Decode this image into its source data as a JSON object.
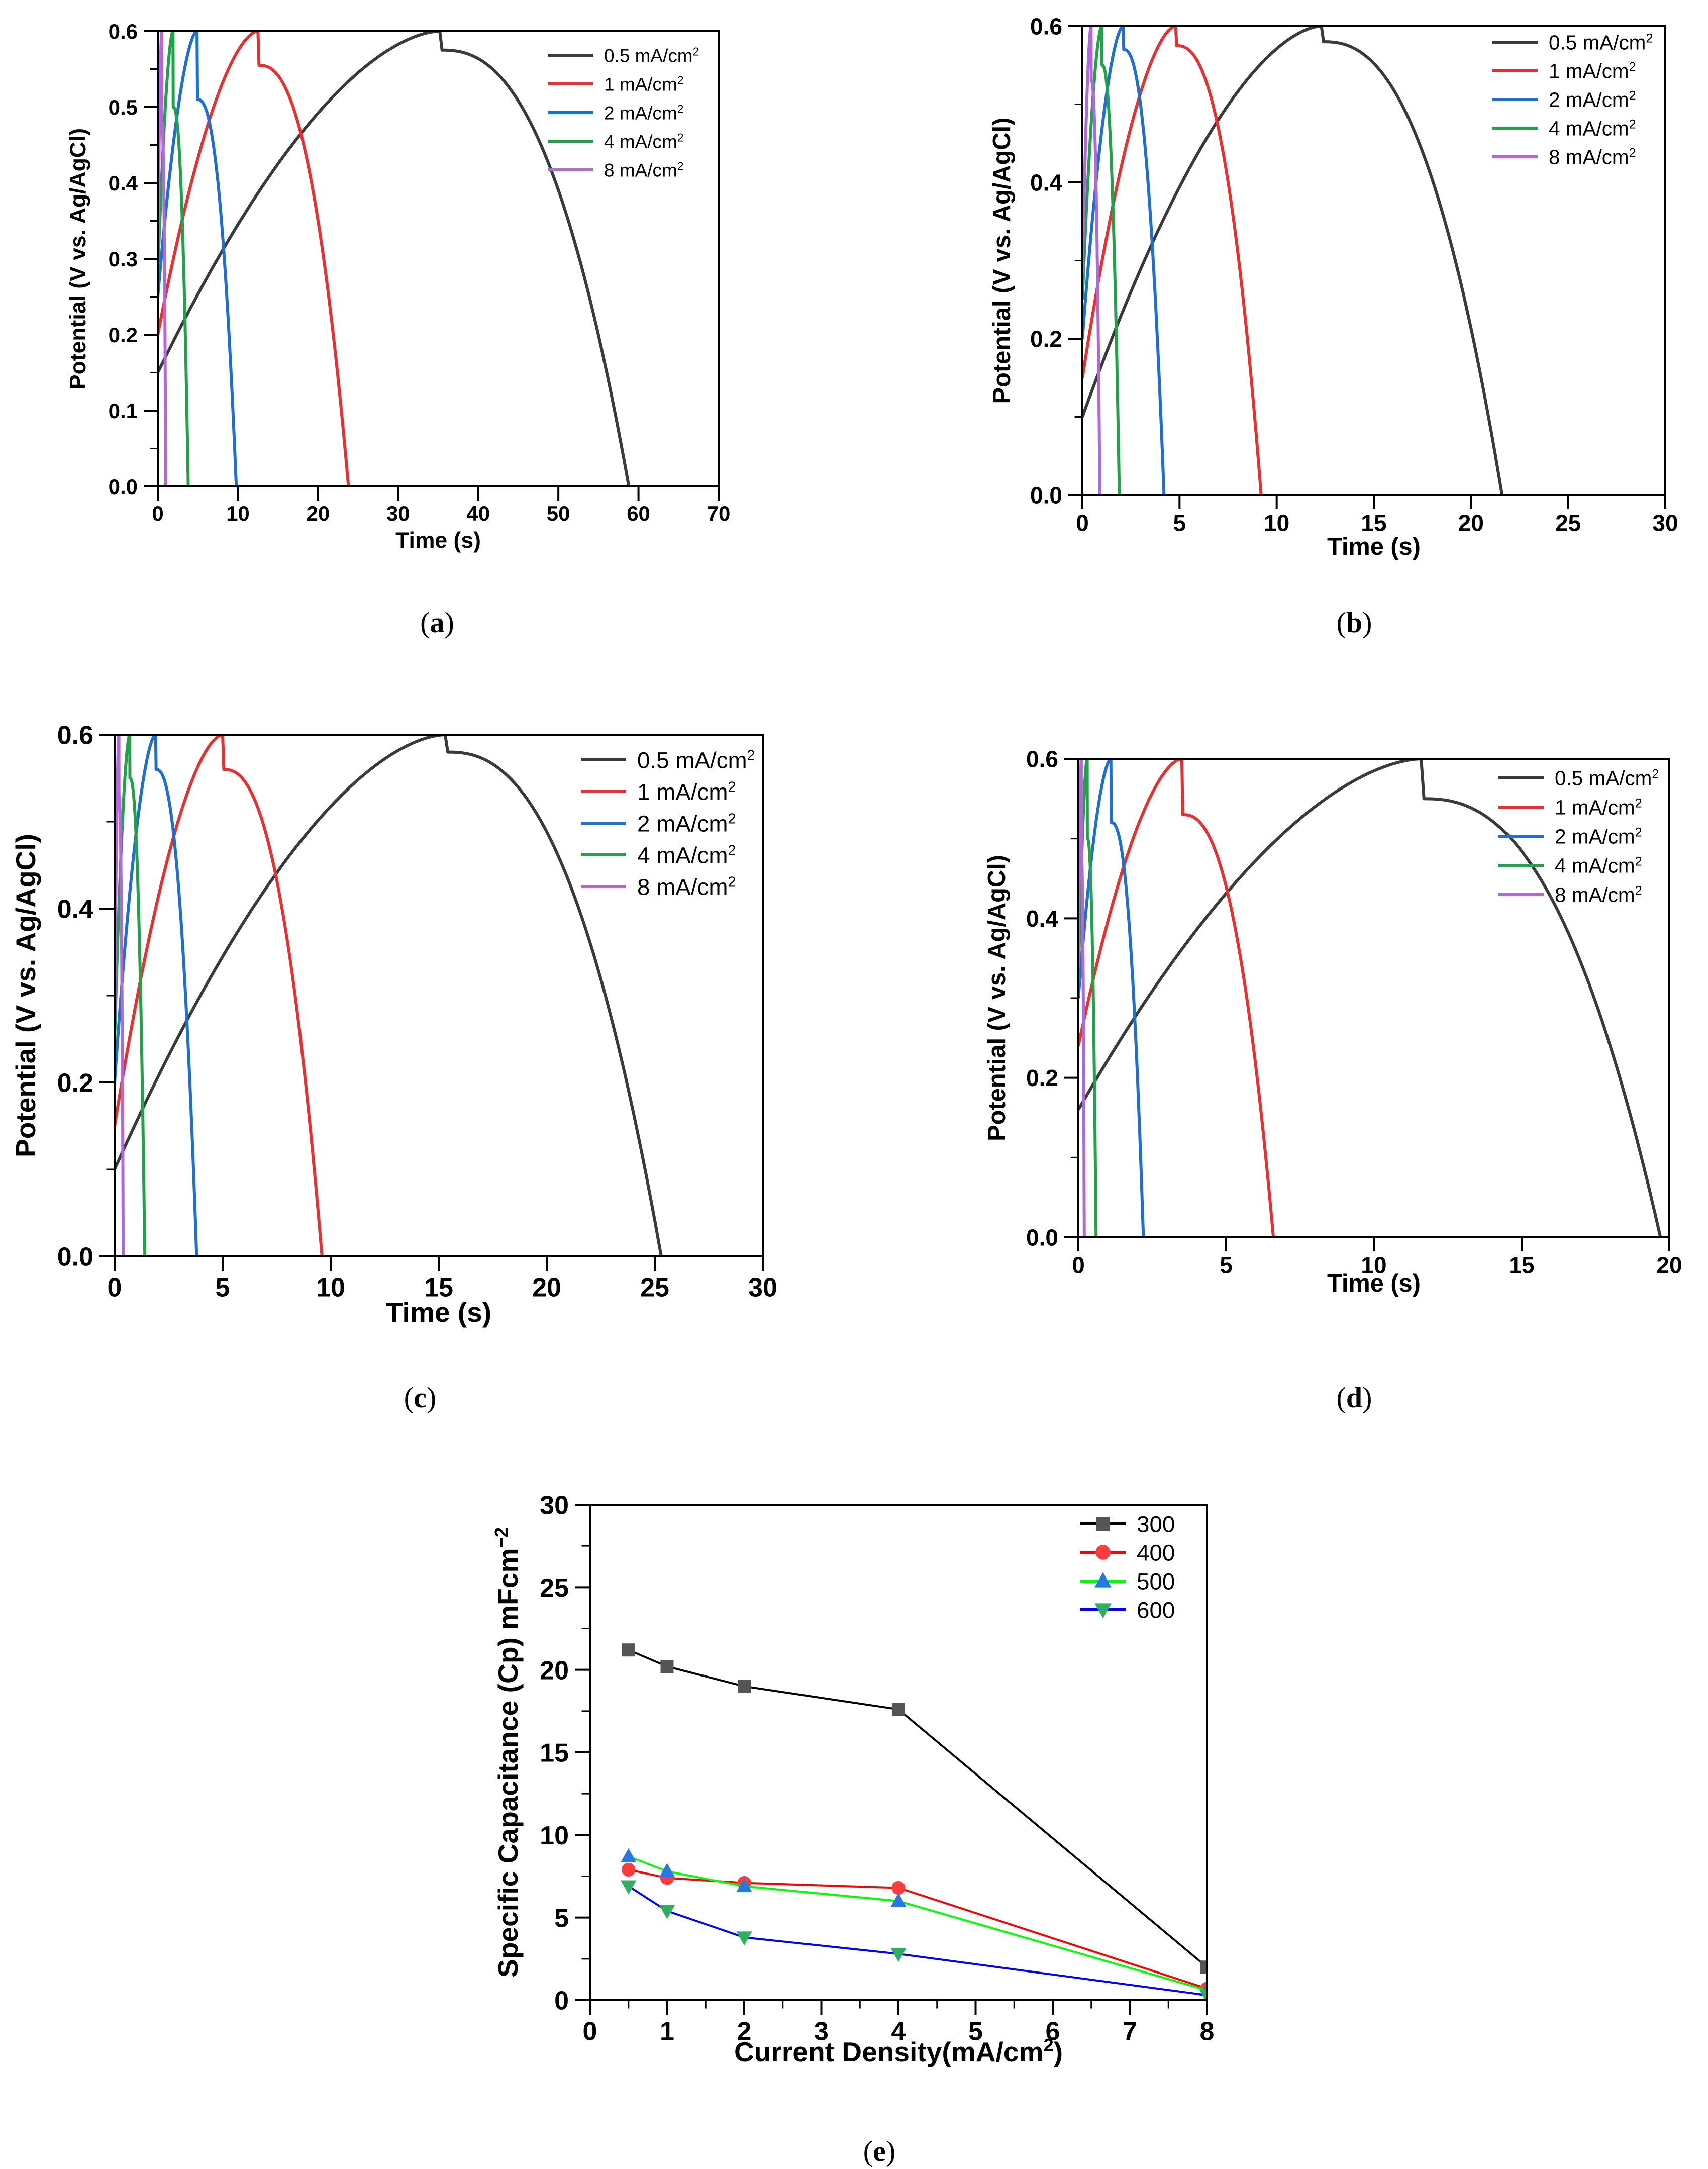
{
  "figure": {
    "panels": [
      "(a)",
      "(b)",
      "(c)",
      "(d)",
      "(e)"
    ]
  },
  "chart_data": [
    {
      "panel": "(a)",
      "type": "line",
      "xlabel": "Time (s)",
      "ylabel": "Potential (V vs. Ag/AgCl)",
      "xlim": [
        0,
        70
      ],
      "ylim": [
        0.0,
        0.6
      ],
      "xticks": [
        "0",
        "10",
        "20",
        "30",
        "40",
        "50",
        "60",
        "70"
      ],
      "yticks": [
        "0.0",
        "0.1",
        "0.2",
        "0.3",
        "0.4",
        "0.5",
        "0.6"
      ],
      "legend": "top-right",
      "series": [
        {
          "name": "0.5 mA/cm2",
          "legend_base": "0.5 mA/cm",
          "color": "#3a3a3a",
          "charge_end": 35.2,
          "discharge_end": 58.8,
          "start_v": 0.15,
          "drop_v": 0.575
        },
        {
          "name": "1 mA/cm2",
          "legend_base": "1 mA/cm",
          "color": "#e8312f",
          "charge_end": 12.5,
          "discharge_end": 23.8,
          "start_v": 0.2,
          "drop_v": 0.555
        },
        {
          "name": "2 mA/cm2",
          "legend_base": "2 mA/cm",
          "color": "#1f6fd1",
          "charge_end": 4.9,
          "discharge_end": 9.8,
          "start_v": 0.25,
          "drop_v": 0.51
        },
        {
          "name": "4 mA/cm2",
          "legend_base": "4 mA/cm",
          "color": "#22a14a",
          "charge_end": 1.9,
          "discharge_end": 3.8,
          "start_v": 0.28,
          "drop_v": 0.5
        },
        {
          "name": "8 mA/cm2",
          "legend_base": "8 mA/cm",
          "color": "#b06ad8",
          "charge_end": 0.5,
          "discharge_end": 1.0,
          "start_v": 0.3,
          "drop_v": 0.48
        }
      ]
    },
    {
      "panel": "(b)",
      "type": "line",
      "xlabel": "Time (s)",
      "ylabel": "Potential (V vs. Ag/AgCl)",
      "xlim": [
        0,
        30
      ],
      "ylim": [
        0.0,
        0.6
      ],
      "xticks": [
        "0",
        "5",
        "10",
        "15",
        "20",
        "25",
        "30"
      ],
      "yticks": [
        "0.0",
        "0.2",
        "0.4",
        "0.6"
      ],
      "legend": "top-right",
      "series": [
        {
          "name": "0.5 mA/cm2",
          "legend_base": "0.5 mA/cm",
          "color": "#3a3a3a",
          "charge_end": 12.3,
          "discharge_end": 21.6,
          "start_v": 0.1,
          "drop_v": 0.58
        },
        {
          "name": "1 mA/cm2",
          "legend_base": "1 mA/cm",
          "color": "#e8312f",
          "charge_end": 4.8,
          "discharge_end": 9.2,
          "start_v": 0.15,
          "drop_v": 0.575
        },
        {
          "name": "2 mA/cm2",
          "legend_base": "2 mA/cm",
          "color": "#1f6fd1",
          "charge_end": 2.1,
          "discharge_end": 4.2,
          "start_v": 0.2,
          "drop_v": 0.57
        },
        {
          "name": "4 mA/cm2",
          "legend_base": "4 mA/cm",
          "color": "#22a14a",
          "charge_end": 1.0,
          "discharge_end": 1.9,
          "start_v": 0.25,
          "drop_v": 0.55
        },
        {
          "name": "8 mA/cm2",
          "legend_base": "8 mA/cm",
          "color": "#b06ad8",
          "charge_end": 0.45,
          "discharge_end": 0.9,
          "start_v": 0.28,
          "drop_v": 0.53
        }
      ]
    },
    {
      "panel": "(c)",
      "type": "line",
      "xlabel": "Time (s)",
      "ylabel": "Potential (V vs. Ag/AgCl)",
      "xlim": [
        0,
        30
      ],
      "ylim": [
        0.0,
        0.6
      ],
      "xticks": [
        "0",
        "5",
        "10",
        "15",
        "20",
        "25",
        "30"
      ],
      "yticks": [
        "0.0",
        "0.2",
        "0.4",
        "0.6"
      ],
      "legend": "top-right",
      "series": [
        {
          "name": "0.5 mA/cm2",
          "legend_base": "0.5 mA/cm",
          "color": "#3a3a3a",
          "charge_end": 15.3,
          "discharge_end": 25.3,
          "start_v": 0.1,
          "drop_v": 0.58
        },
        {
          "name": "1 mA/cm2",
          "legend_base": "1 mA/cm",
          "color": "#e8312f",
          "charge_end": 5.0,
          "discharge_end": 9.6,
          "start_v": 0.15,
          "drop_v": 0.56
        },
        {
          "name": "2 mA/cm2",
          "legend_base": "2 mA/cm",
          "color": "#1f6fd1",
          "charge_end": 1.9,
          "discharge_end": 3.8,
          "start_v": 0.2,
          "drop_v": 0.56
        },
        {
          "name": "4 mA/cm2",
          "legend_base": "4 mA/cm",
          "color": "#22a14a",
          "charge_end": 0.7,
          "discharge_end": 1.4,
          "start_v": 0.25,
          "drop_v": 0.55
        },
        {
          "name": "8 mA/cm2",
          "legend_base": "8 mA/cm",
          "color": "#b06ad8",
          "charge_end": 0.2,
          "discharge_end": 0.4,
          "start_v": 0.28,
          "drop_v": 0.53
        }
      ]
    },
    {
      "panel": "(d)",
      "type": "line",
      "xlabel": "Time (s)",
      "ylabel": "Potential (V vs. Ag/AgCl)",
      "xlim": [
        0,
        20
      ],
      "ylim": [
        0.0,
        0.6
      ],
      "xticks": [
        "0",
        "5",
        "10",
        "15",
        "20"
      ],
      "yticks": [
        "0.0",
        "0.2",
        "0.4",
        "0.6"
      ],
      "legend": "top-right",
      "series": [
        {
          "name": "0.5 mA/cm2",
          "legend_base": "0.5 mA/cm",
          "color": "#3a3a3a",
          "charge_end": 11.6,
          "discharge_end": 19.7,
          "start_v": 0.16,
          "drop_v": 0.55
        },
        {
          "name": "1 mA/cm2",
          "legend_base": "1 mA/cm",
          "color": "#e8312f",
          "charge_end": 3.5,
          "discharge_end": 6.6,
          "start_v": 0.24,
          "drop_v": 0.53
        },
        {
          "name": "2 mA/cm2",
          "legend_base": "2 mA/cm",
          "color": "#1f6fd1",
          "charge_end": 1.1,
          "discharge_end": 2.2,
          "start_v": 0.3,
          "drop_v": 0.52
        },
        {
          "name": "4 mA/cm2",
          "legend_base": "4 mA/cm",
          "color": "#22a14a",
          "charge_end": 0.3,
          "discharge_end": 0.6,
          "start_v": 0.32,
          "drop_v": 0.5
        },
        {
          "name": "8 mA/cm2",
          "legend_base": "8 mA/cm",
          "color": "#b06ad8",
          "charge_end": 0.1,
          "discharge_end": 0.2,
          "start_v": 0.34,
          "drop_v": 0.48
        }
      ]
    },
    {
      "panel": "(e)",
      "type": "line",
      "xlabel": "Current Density(mA/cm2)",
      "xlabel_base": "Current Density(mA/cm",
      "xlabel_tail": ")",
      "ylabel": "Specific Capacitance (Cp) mFcm−2",
      "ylabel_base": "Specific Capacitance (Cp) mFcm",
      "xlim": [
        0,
        8
      ],
      "ylim": [
        0,
        30
      ],
      "xticks": [
        "0",
        "1",
        "2",
        "3",
        "4",
        "5",
        "6",
        "7",
        "8"
      ],
      "yticks": [
        "0",
        "5",
        "10",
        "15",
        "20",
        "25",
        "30"
      ],
      "legend": "top-right",
      "x": [
        0.5,
        1,
        2,
        4,
        8
      ],
      "series": [
        {
          "name": "300",
          "color": "#000000",
          "marker_color": "#555555",
          "marker": "square",
          "values": [
            21.2,
            20.2,
            19.0,
            17.6,
            2.0
          ]
        },
        {
          "name": "400",
          "color": "#ff0000",
          "marker_color": "#ff3b3b",
          "marker": "circle",
          "values": [
            7.9,
            7.4,
            7.1,
            6.8,
            0.7
          ]
        },
        {
          "name": "500",
          "color": "#00ff00",
          "marker_color": "#2677e8",
          "marker": "triangle-up",
          "values": [
            8.7,
            7.8,
            6.9,
            6.0,
            0.6
          ]
        },
        {
          "name": "600",
          "color": "#0000ff",
          "marker_color": "#2fae62",
          "marker": "triangle-down",
          "values": [
            6.9,
            5.4,
            3.8,
            2.8,
            0.3
          ]
        }
      ]
    }
  ]
}
